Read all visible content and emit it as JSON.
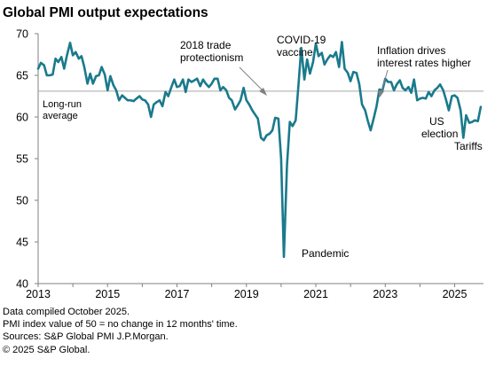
{
  "title": "Global PMI output expectations",
  "chart_data": {
    "type": "line",
    "title": "Global PMI output expectations",
    "xlabel": "",
    "ylabel": "",
    "xlim": [
      2013.0,
      2025.83
    ],
    "ylim": [
      40,
      70
    ],
    "y_ticks": [
      40,
      45,
      50,
      55,
      60,
      65,
      70
    ],
    "x_ticks": [
      2013,
      2015,
      2017,
      2019,
      2021,
      2023,
      2025
    ],
    "grid": false,
    "legend": "none",
    "line_color": "#1a7a8c",
    "reference_color": "#a6a6a6",
    "long_run_average": 63.1,
    "series": [
      {
        "x": [
          2013.0,
          2013.08,
          2013.17,
          2013.25,
          2013.33,
          2013.42,
          2013.5,
          2013.58,
          2013.67,
          2013.75,
          2013.83,
          2013.92,
          2014.0,
          2014.08,
          2014.17,
          2014.25,
          2014.33,
          2014.42,
          2014.5,
          2014.58,
          2014.67,
          2014.75,
          2014.83,
          2014.92,
          2015.0,
          2015.08,
          2015.17,
          2015.25,
          2015.33,
          2015.42,
          2015.5,
          2015.58,
          2015.67,
          2015.75,
          2015.83,
          2015.92,
          2016.0,
          2016.08,
          2016.17,
          2016.25,
          2016.33,
          2016.42,
          2016.5,
          2016.58,
          2016.67,
          2016.75,
          2016.83,
          2016.92,
          2017.0,
          2017.08,
          2017.17,
          2017.25,
          2017.33,
          2017.42,
          2017.5,
          2017.58,
          2017.67,
          2017.75,
          2017.83,
          2017.92,
          2018.0,
          2018.08,
          2018.17,
          2018.25,
          2018.33,
          2018.42,
          2018.5,
          2018.58,
          2018.67,
          2018.75,
          2018.83,
          2018.92,
          2019.0,
          2019.08,
          2019.17,
          2019.25,
          2019.33,
          2019.42,
          2019.5,
          2019.58,
          2019.67,
          2019.75,
          2019.83,
          2019.92,
          2020.0,
          2020.08,
          2020.17,
          2020.25,
          2020.33,
          2020.42,
          2020.5,
          2020.58,
          2020.67,
          2020.75,
          2020.83,
          2020.92,
          2021.0,
          2021.08,
          2021.17,
          2021.25,
          2021.33,
          2021.42,
          2021.5,
          2021.58,
          2021.67,
          2021.75,
          2021.83,
          2021.92,
          2022.0,
          2022.08,
          2022.17,
          2022.25,
          2022.33,
          2022.42,
          2022.5,
          2022.58,
          2022.67,
          2022.75,
          2022.83,
          2022.92,
          2023.0,
          2023.08,
          2023.17,
          2023.25,
          2023.33,
          2023.42,
          2023.5,
          2023.58,
          2023.67,
          2023.75,
          2023.83,
          2023.92,
          2024.0,
          2024.08,
          2024.17,
          2024.25,
          2024.33,
          2024.42,
          2024.5,
          2024.58,
          2024.67,
          2024.75,
          2024.83,
          2024.92,
          2025.0,
          2025.08,
          2025.17,
          2025.25,
          2025.33,
          2025.42,
          2025.5,
          2025.58,
          2025.67,
          2025.75
        ],
        "values": [
          65.8,
          66.5,
          66.2,
          65.0,
          65.0,
          65.1,
          67.0,
          66.6,
          67.2,
          65.8,
          67.4,
          68.9,
          67.4,
          67.8,
          67.0,
          67.3,
          66.0,
          64.0,
          65.2,
          64.0,
          64.9,
          65.0,
          66.0,
          65.1,
          63.2,
          64.9,
          63.8,
          63.2,
          62.0,
          62.6,
          62.3,
          62.0,
          62.0,
          61.9,
          62.2,
          62.5,
          62.1,
          62.0,
          61.5,
          60.0,
          61.5,
          61.8,
          62.0,
          61.3,
          63.0,
          62.5,
          63.5,
          64.5,
          63.6,
          63.7,
          64.5,
          63.0,
          64.5,
          64.2,
          64.4,
          64.6,
          63.7,
          64.5,
          64.0,
          63.6,
          64.0,
          64.6,
          64.6,
          63.2,
          63.6,
          63.2,
          62.3,
          62.0,
          60.9,
          61.4,
          62.0,
          63.5,
          62.0,
          61.5,
          60.8,
          60.3,
          59.8,
          57.5,
          57.2,
          57.8,
          58.0,
          58.4,
          59.9,
          59.8,
          55.0,
          43.2,
          54.2,
          59.4,
          58.9,
          59.6,
          63.9,
          68.3,
          64.5,
          66.9,
          65.2,
          66.6,
          68.8,
          67.3,
          67.7,
          66.3,
          66.9,
          67.4,
          67.2,
          67.8,
          66.0,
          69.0,
          65.8,
          65.3,
          64.3,
          65.4,
          65.3,
          64.0,
          61.5,
          60.8,
          59.5,
          58.4,
          59.9,
          61.3,
          63.3,
          63.2,
          64.6,
          64.2,
          64.2,
          63.2,
          63.9,
          64.4,
          63.5,
          63.2,
          63.6,
          62.9,
          64.5,
          62.0,
          62.2,
          62.3,
          62.2,
          63.0,
          62.5,
          63.2,
          63.5,
          63.9,
          63.2,
          62.1,
          60.8,
          62.5,
          62.6,
          62.3,
          60.8,
          57.5,
          60.2,
          59.3,
          59.4,
          59.6,
          59.5,
          61.2
        ]
      }
    ],
    "annotations": {
      "long_run_average": [
        "Long-run",
        "average"
      ],
      "trade": [
        "2018 trade",
        "protectionism"
      ],
      "covid": [
        "COVID-19",
        "vaccine"
      ],
      "inflation": [
        "Inflation drives",
        "interest rates higher"
      ],
      "pandemic": "Pandemic",
      "us_election": [
        "US",
        "election"
      ],
      "tariffs": "Tariffs"
    }
  },
  "notes": [
    "Data compiled October 2025.",
    "PMI index value of 50 = no change in 12 months' time.",
    "Sources: S&P Global PMI J.P.Morgan.",
    "© 2025 S&P Global."
  ]
}
